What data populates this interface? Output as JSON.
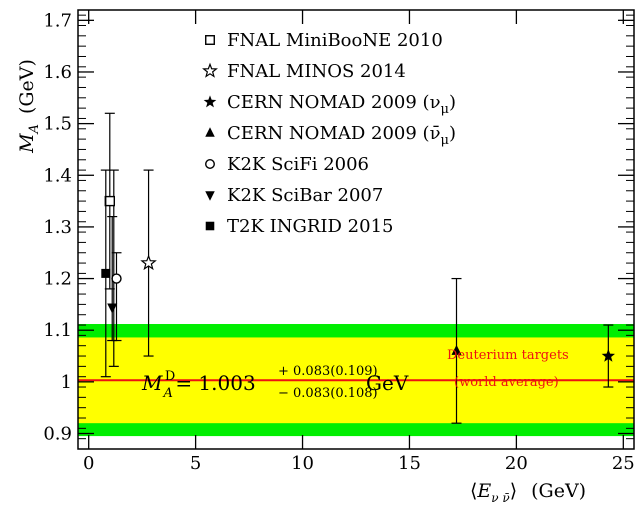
{
  "chart_data": {
    "type": "scatter",
    "xlabel_symbol": "E",
    "xlabel_sub": "ν ν̄",
    "xlabel_unit": "(GeV)",
    "ylabel_symbol": "M",
    "ylabel_sub": "A",
    "ylabel_unit": "(GeV)",
    "xlim": [
      -0.5,
      25.5
    ],
    "ylim": [
      0.87,
      1.72
    ],
    "x_ticks": [
      0,
      5,
      10,
      15,
      20,
      25
    ],
    "y_ticks": [
      0.9,
      1,
      1.1,
      1.2,
      1.3,
      1.4,
      1.5,
      1.6,
      1.7
    ],
    "y_tick_labels": [
      "0.9",
      "1",
      "1.1",
      "1.2",
      "1.3",
      "1.4",
      "1.5",
      "1.6",
      "1.7"
    ],
    "world_average": {
      "value": 1.003,
      "inner_band": [
        0.92,
        1.086
      ],
      "outer_band": [
        0.895,
        1.112
      ],
      "line_color": "#ee1111",
      "inner_color": "#ffff00",
      "outer_color": "#00ee00",
      "annotation_line1": "Deuterium targets",
      "annotation_line2": "(world average)",
      "formula_symbol": "M",
      "formula_sub": "A",
      "formula_sup": "D",
      "formula_main": "= 1.003",
      "formula_upper": "+ 0.083(0.109)",
      "formula_lower": "− 0.083(0.108)",
      "formula_unit": "GeV"
    },
    "series": [
      {
        "name": "FNAL MiniBooNE 2010",
        "marker": "open-square",
        "points": [
          {
            "x": 0.8,
            "y": 1.35,
            "ylo": 1.18,
            "yhi": 1.52,
            "ylo2": 1.03,
            "yhi2": 1.41
          }
        ]
      },
      {
        "name": "FNAL MINOS 2014",
        "marker": "open-star",
        "points": [
          {
            "x": 2.8,
            "y": 1.23,
            "ylo": 1.05,
            "yhi": 1.41
          }
        ]
      },
      {
        "name": "CERN NOMAD 2009 (ν_μ)",
        "legend_main": "CERN NOMAD 2009 (ν",
        "legend_sub": "μ",
        "legend_end": ")",
        "marker": "filled-star",
        "points": [
          {
            "x": 24.3,
            "y": 1.05,
            "ylo": 0.99,
            "yhi": 1.11
          }
        ]
      },
      {
        "name": "CERN NOMAD 2009 (ν̄_μ)",
        "legend_main": "CERN NOMAD 2009 (ν̄",
        "legend_sub": "μ",
        "legend_end": ")",
        "marker": "filled-triangle-up",
        "points": [
          {
            "x": 17.2,
            "y": 1.06,
            "ylo": 0.92,
            "yhi": 1.2
          }
        ]
      },
      {
        "name": "K2K SciFi 2006",
        "marker": "open-circle",
        "points": [
          {
            "x": 1.3,
            "y": 1.2,
            "ylo": 1.08,
            "yhi": 1.25
          }
        ]
      },
      {
        "name": "K2K SciBar 2007",
        "marker": "filled-triangle-down",
        "points": [
          {
            "x": 1.1,
            "y": 1.144,
            "ylo": 1.08,
            "yhi": 1.32
          }
        ]
      },
      {
        "name": "T2K INGRID 2015",
        "marker": "filled-square",
        "points": [
          {
            "x": 0.8,
            "y": 1.21,
            "ylo": 1.01,
            "yhi": 1.41
          }
        ]
      }
    ]
  }
}
